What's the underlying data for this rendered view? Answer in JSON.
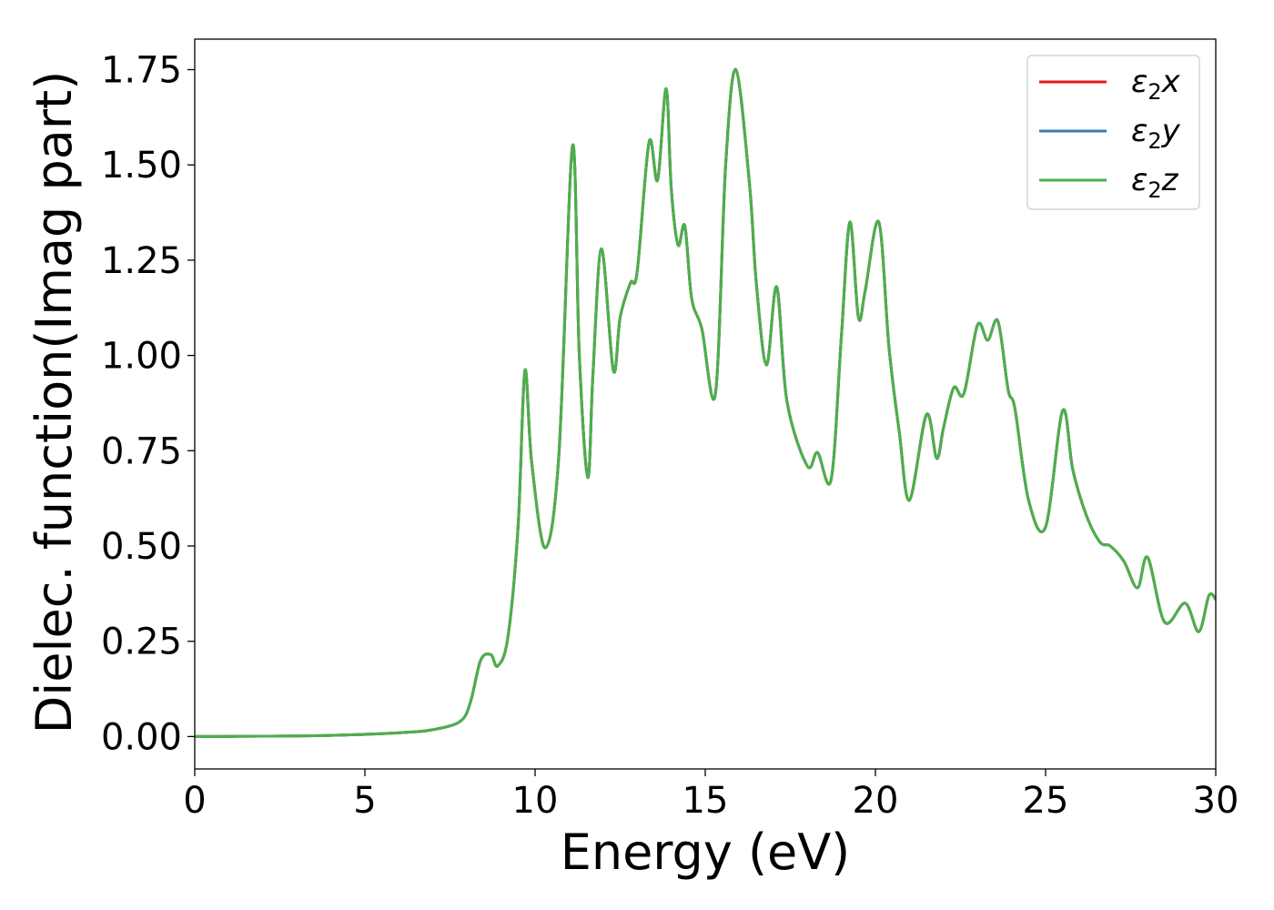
{
  "chart_data": {
    "type": "line",
    "title": "",
    "xlabel": "Energy (eV)",
    "ylabel": "Dielec. function(Imag part)",
    "xlim": [
      0,
      30
    ],
    "ylim": [
      -0.085,
      1.83
    ],
    "x_ticks": [
      0,
      5,
      10,
      15,
      20,
      25,
      30
    ],
    "x_tick_labels": [
      "0",
      "5",
      "10",
      "15",
      "20",
      "25",
      "30"
    ],
    "y_ticks": [
      0.0,
      0.25,
      0.5,
      0.75,
      1.0,
      1.25,
      1.5,
      1.75
    ],
    "y_tick_labels": [
      "0.00",
      "0.25",
      "0.50",
      "0.75",
      "1.00",
      "1.25",
      "1.50",
      "1.75"
    ],
    "grid": false,
    "legend_position": "top-right",
    "series": [
      {
        "name": "ε2x",
        "legend_base": "ε",
        "legend_sub": "2",
        "legend_suffix": "x",
        "color": "#e41a1c"
      },
      {
        "name": "ε2y",
        "legend_base": "ε",
        "legend_sub": "2",
        "legend_suffix": "y",
        "color": "#377eb8"
      },
      {
        "name": "ε2z",
        "legend_base": "ε",
        "legend_sub": "2",
        "legend_suffix": "z",
        "color": "#4daf4a"
      }
    ],
    "x": [
      0,
      2,
      4,
      6,
      7,
      7.8,
      8.1,
      8.4,
      8.7,
      8.9,
      9.2,
      9.5,
      9.7,
      9.9,
      10.3,
      10.7,
      11.1,
      11.3,
      11.55,
      11.7,
      11.95,
      12.3,
      12.5,
      12.8,
      13.0,
      13.35,
      13.6,
      13.85,
      14.0,
      14.2,
      14.4,
      14.6,
      14.9,
      15.3,
      15.6,
      15.9,
      16.3,
      16.5,
      16.8,
      17.1,
      17.4,
      18.0,
      18.3,
      18.7,
      19.0,
      19.25,
      19.5,
      19.7,
      20.1,
      20.4,
      20.7,
      21.0,
      21.5,
      21.8,
      22.0,
      22.3,
      22.6,
      23.0,
      23.3,
      23.6,
      23.9,
      24.1,
      24.5,
      25.0,
      25.5,
      25.8,
      26.2,
      26.6,
      26.9,
      27.3,
      27.7,
      28.0,
      28.5,
      29.1,
      29.5,
      29.8,
      30.0
    ],
    "values_by_series": {
      "shared": [
        0.0,
        0.001,
        0.003,
        0.01,
        0.018,
        0.04,
        0.09,
        0.2,
        0.215,
        0.185,
        0.26,
        0.55,
        0.96,
        0.72,
        0.495,
        0.74,
        1.55,
        1.0,
        0.68,
        0.95,
        1.28,
        0.96,
        1.1,
        1.19,
        1.22,
        1.56,
        1.46,
        1.7,
        1.44,
        1.29,
        1.34,
        1.15,
        1.07,
        0.9,
        1.5,
        1.75,
        1.45,
        1.19,
        0.975,
        1.18,
        0.88,
        0.71,
        0.745,
        0.675,
        1.05,
        1.35,
        1.1,
        1.17,
        1.35,
        1.02,
        0.8,
        0.62,
        0.845,
        0.73,
        0.81,
        0.915,
        0.9,
        1.08,
        1.04,
        1.09,
        0.91,
        0.86,
        0.62,
        0.55,
        0.855,
        0.7,
        0.58,
        0.51,
        0.5,
        0.46,
        0.39,
        0.47,
        0.3,
        0.35,
        0.275,
        0.37,
        0.36
      ]
    }
  }
}
